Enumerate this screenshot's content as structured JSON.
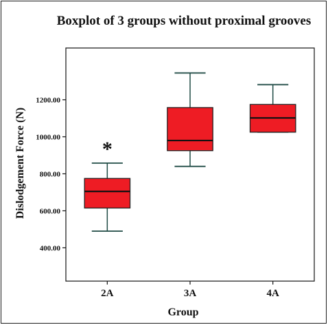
{
  "chart_data": {
    "type": "boxplot",
    "title": "Boxplot of 3 groups without proximal grooves",
    "xlabel": "Group",
    "ylabel": "Dislodgement Force (N)",
    "categories": [
      "2A",
      "3A",
      "4A"
    ],
    "ylim": [
      220,
      1480
    ],
    "yticks": [
      400,
      600,
      800,
      1000,
      1200
    ],
    "ytick_labels": [
      "400.00",
      "600.00",
      "800.00",
      "1000.00",
      "1200.00"
    ],
    "boxes": [
      {
        "category": "2A",
        "min": 490,
        "q1": 615,
        "median": 705,
        "q3": 775,
        "max": 858
      },
      {
        "category": "3A",
        "min": 840,
        "q1": 925,
        "median": 980,
        "q3": 1158,
        "max": 1345
      },
      {
        "category": "4A",
        "min": 1025,
        "q1": 1025,
        "median": 1102,
        "q3": 1175,
        "max": 1282
      }
    ],
    "annotations": [
      {
        "category": "2A",
        "text": "*",
        "y": 965
      }
    ],
    "box_color": "#ee1c24",
    "grid": false
  }
}
